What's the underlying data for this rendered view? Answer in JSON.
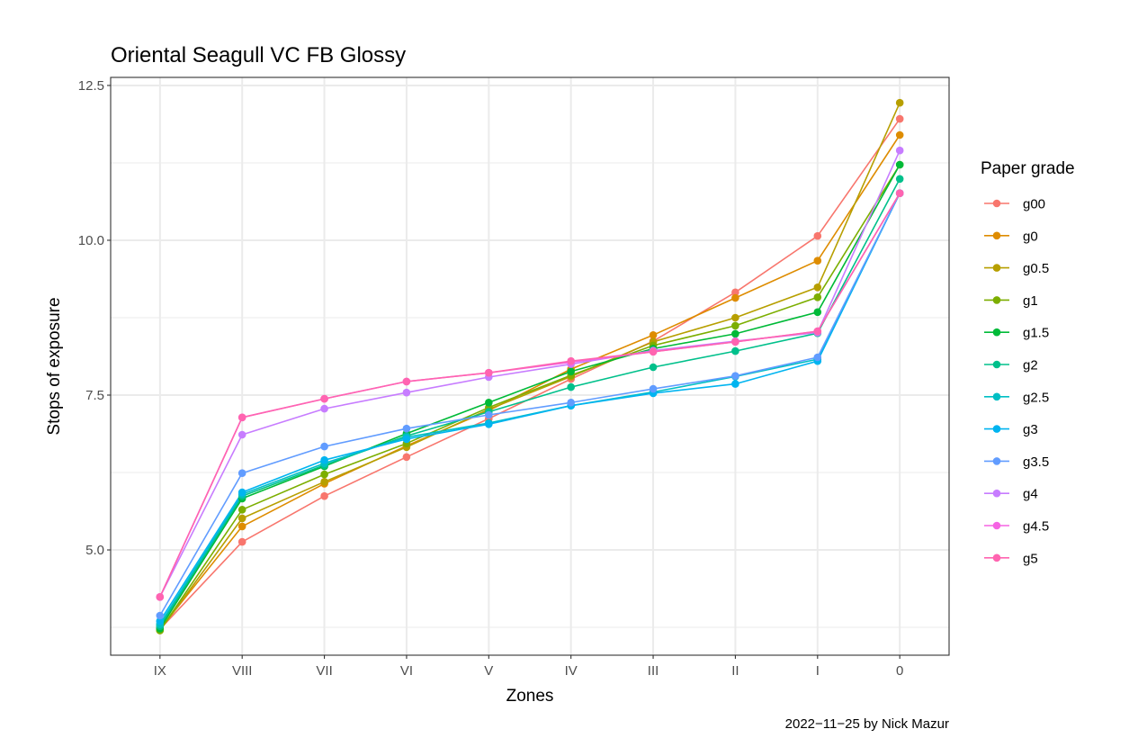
{
  "chart_data": {
    "type": "line",
    "title": "Oriental Seagull VC FB Glossy",
    "xlabel": "Zones",
    "ylabel": "Stops of exposure",
    "caption": "2022−11−25 by Nick Mazur",
    "categories": [
      "IX",
      "VIII",
      "VII",
      "VI",
      "V",
      "IV",
      "III",
      "II",
      "I",
      "0"
    ],
    "ylim": [
      3.3,
      12.63
    ],
    "yticks": [
      5.0,
      7.5,
      10.0,
      12.5
    ],
    "ytick_labels": [
      "5.0",
      "7.5",
      "10.0",
      "12.5"
    ],
    "grid": true,
    "legend": {
      "title": "Paper grade",
      "position": "right"
    },
    "series": [
      {
        "name": "g00",
        "color": "#F8766D",
        "values": [
          3.72,
          5.13,
          5.87,
          6.5,
          7.12,
          7.76,
          8.37,
          9.16,
          10.07,
          11.96
        ]
      },
      {
        "name": "g0",
        "color": "#DE8C00",
        "values": [
          3.72,
          5.38,
          6.07,
          6.68,
          7.25,
          7.92,
          8.47,
          9.07,
          9.67,
          11.7
        ]
      },
      {
        "name": "g0.5",
        "color": "#B79F00",
        "values": [
          3.7,
          5.51,
          6.1,
          6.66,
          7.27,
          7.8,
          8.36,
          8.75,
          9.24,
          12.22
        ]
      },
      {
        "name": "g1",
        "color": "#7CAE00",
        "values": [
          3.7,
          5.65,
          6.22,
          6.72,
          7.3,
          7.82,
          8.3,
          8.62,
          9.08,
          11.22
        ]
      },
      {
        "name": "g1.5",
        "color": "#00BA38",
        "values": [
          3.73,
          5.83,
          6.35,
          6.88,
          7.38,
          7.88,
          8.25,
          8.49,
          8.84,
          11.22
        ]
      },
      {
        "name": "g2",
        "color": "#00C08B",
        "values": [
          3.77,
          5.87,
          6.37,
          6.84,
          7.23,
          7.63,
          7.95,
          8.21,
          8.5,
          10.99
        ]
      },
      {
        "name": "g2.5",
        "color": "#00BFC4",
        "values": [
          3.8,
          5.9,
          6.4,
          6.82,
          7.05,
          7.33,
          7.55,
          7.8,
          8.08,
          10.76
        ]
      },
      {
        "name": "g3",
        "color": "#00B4F0",
        "values": [
          3.85,
          5.93,
          6.45,
          6.79,
          7.03,
          7.33,
          7.53,
          7.68,
          8.05,
          10.76
        ]
      },
      {
        "name": "g3.5",
        "color": "#619CFF",
        "values": [
          3.94,
          6.24,
          6.67,
          6.96,
          7.18,
          7.38,
          7.6,
          7.81,
          8.11,
          10.76
        ]
      },
      {
        "name": "g4",
        "color": "#C77CFF",
        "values": [
          4.24,
          6.86,
          7.28,
          7.54,
          7.79,
          8.0,
          8.22,
          8.37,
          8.51,
          11.45
        ]
      },
      {
        "name": "g4.5",
        "color": "#F564E3",
        "values": [
          4.24,
          7.14,
          7.44,
          7.72,
          7.86,
          8.03,
          8.2,
          8.36,
          8.53,
          10.76
        ]
      },
      {
        "name": "g5",
        "color": "#FF64B0",
        "values": [
          4.24,
          7.14,
          7.44,
          7.72,
          7.86,
          8.05,
          8.2,
          8.36,
          8.53,
          10.76
        ]
      }
    ]
  }
}
